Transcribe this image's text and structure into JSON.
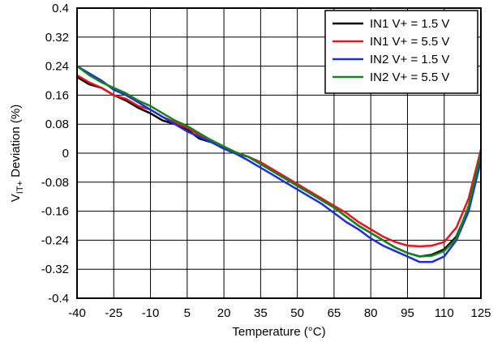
{
  "chart_data": {
    "type": "line",
    "xlabel": "Temperature (°C)",
    "ylabel_main": "V",
    "ylabel_sub": "IT+",
    "ylabel_rest": " Deviation (%)",
    "xlim": [
      -40,
      125
    ],
    "ylim": [
      -0.4,
      0.4
    ],
    "xticks": [
      -40,
      -25,
      -10,
      5,
      20,
      35,
      50,
      65,
      80,
      95,
      110,
      125
    ],
    "yticks": [
      0.4,
      0.32,
      0.24,
      0.16,
      0.08,
      0,
      -0.08,
      -0.16,
      -0.24,
      -0.32,
      -0.4
    ],
    "ytick_labels": [
      "0.4",
      "0.32",
      "0.24",
      "0.16",
      "0.08",
      "0",
      "-0.08",
      "-0.16",
      "-0.24",
      "-0.32",
      "-0.4"
    ],
    "xgrid": [
      -40,
      -25,
      -10,
      5,
      20,
      35,
      50,
      65,
      80,
      95,
      110,
      125
    ],
    "ygrid": [
      0.4,
      0.32,
      0.24,
      0.16,
      0.08,
      0,
      -0.08,
      -0.16,
      -0.24,
      -0.32,
      -0.4
    ],
    "grid": true,
    "legend_position": "top-right",
    "series": [
      {
        "name": "IN1 V+ = 1.5 V",
        "color": "#000000",
        "x": [
          -40,
          -35,
          -30,
          -25,
          -20,
          -15,
          -10,
          -5,
          0,
          5,
          10,
          15,
          20,
          25,
          30,
          35,
          40,
          45,
          50,
          55,
          60,
          65,
          70,
          75,
          80,
          85,
          90,
          95,
          100,
          105,
          110,
          115,
          120,
          125
        ],
        "y": [
          0.21,
          0.19,
          0.18,
          0.16,
          0.145,
          0.125,
          0.11,
          0.09,
          0.08,
          0.065,
          0.04,
          0.03,
          0.015,
          0.0,
          -0.01,
          -0.03,
          -0.05,
          -0.07,
          -0.09,
          -0.11,
          -0.13,
          -0.15,
          -0.175,
          -0.2,
          -0.22,
          -0.24,
          -0.26,
          -0.275,
          -0.285,
          -0.28,
          -0.265,
          -0.23,
          -0.15,
          0.0
        ]
      },
      {
        "name": "IN1 V+ = 5.5 V",
        "color": "#e8141b",
        "x": [
          -40,
          -35,
          -30,
          -25,
          -20,
          -15,
          -10,
          -5,
          0,
          5,
          10,
          15,
          20,
          25,
          30,
          35,
          40,
          45,
          50,
          55,
          60,
          65,
          70,
          75,
          80,
          85,
          90,
          95,
          100,
          105,
          110,
          115,
          120,
          125
        ],
        "y": [
          0.215,
          0.195,
          0.18,
          0.16,
          0.15,
          0.13,
          0.12,
          0.1,
          0.085,
          0.07,
          0.05,
          0.035,
          0.018,
          0.002,
          -0.01,
          -0.025,
          -0.045,
          -0.065,
          -0.085,
          -0.105,
          -0.125,
          -0.145,
          -0.165,
          -0.19,
          -0.21,
          -0.23,
          -0.245,
          -0.255,
          -0.257,
          -0.255,
          -0.245,
          -0.205,
          -0.125,
          0.01
        ]
      },
      {
        "name": "IN2 V+ = 1.5 V",
        "color": "#1c2fd8",
        "x": [
          -40,
          -35,
          -30,
          -25,
          -20,
          -15,
          -10,
          -5,
          0,
          5,
          10,
          15,
          20,
          25,
          30,
          35,
          40,
          45,
          50,
          55,
          60,
          65,
          70,
          75,
          80,
          85,
          90,
          95,
          100,
          105,
          110,
          115,
          120,
          125
        ],
        "y": [
          0.24,
          0.22,
          0.2,
          0.175,
          0.16,
          0.14,
          0.12,
          0.1,
          0.08,
          0.06,
          0.045,
          0.03,
          0.012,
          -0.002,
          -0.02,
          -0.04,
          -0.06,
          -0.08,
          -0.1,
          -0.12,
          -0.14,
          -0.165,
          -0.19,
          -0.21,
          -0.235,
          -0.255,
          -0.27,
          -0.285,
          -0.3,
          -0.3,
          -0.285,
          -0.24,
          -0.16,
          -0.02
        ]
      },
      {
        "name": "IN2 V+ = 5.5 V",
        "color": "#14851e",
        "x": [
          -40,
          -35,
          -30,
          -25,
          -20,
          -15,
          -10,
          -5,
          0,
          5,
          10,
          15,
          20,
          25,
          30,
          35,
          40,
          45,
          50,
          55,
          60,
          65,
          70,
          75,
          80,
          85,
          90,
          95,
          100,
          105,
          110,
          115,
          120,
          125
        ],
        "y": [
          0.24,
          0.215,
          0.195,
          0.18,
          0.165,
          0.145,
          0.13,
          0.11,
          0.09,
          0.075,
          0.055,
          0.035,
          0.018,
          0.002,
          -0.01,
          -0.03,
          -0.05,
          -0.07,
          -0.09,
          -0.11,
          -0.13,
          -0.15,
          -0.175,
          -0.2,
          -0.22,
          -0.24,
          -0.26,
          -0.275,
          -0.285,
          -0.283,
          -0.27,
          -0.235,
          -0.145,
          0.0
        ]
      }
    ]
  }
}
